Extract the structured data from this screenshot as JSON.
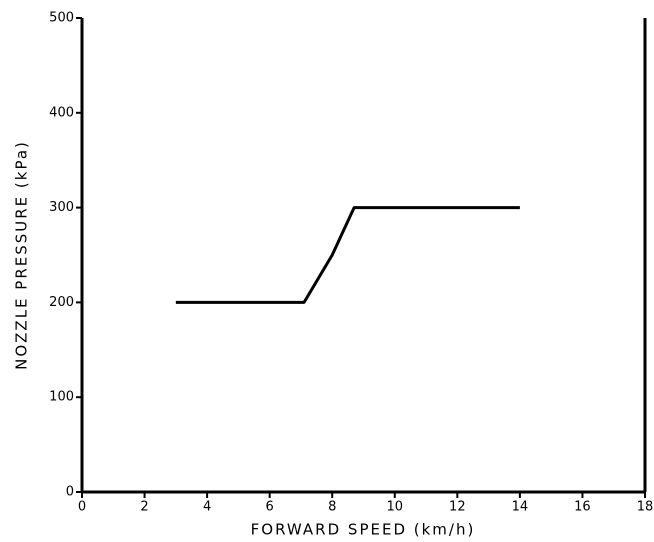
{
  "chart_data": {
    "type": "line",
    "x_label": "FORWARD SPEED (km/h)",
    "y_label": "NOZZLE PRESSURE (kPa)",
    "xlim": [
      0,
      18
    ],
    "xticks": [
      0,
      2,
      4,
      6,
      8,
      10,
      12,
      14,
      16,
      18
    ],
    "ylim": [
      0,
      500
    ],
    "yticks": [
      0,
      100,
      200,
      300,
      400,
      500
    ],
    "series": [
      {
        "x": [
          3,
          7.1,
          8,
          8.7,
          14
        ],
        "values": [
          200,
          200,
          250,
          300,
          300
        ],
        "color": "#000000"
      }
    ]
  }
}
